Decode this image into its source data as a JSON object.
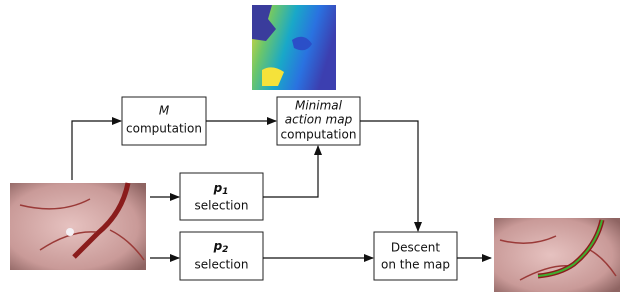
{
  "nodes": [
    {
      "symbol": "M",
      "label": "computation"
    },
    {
      "lines": [
        "Minimal",
        "action map"
      ],
      "label": "computation"
    },
    {
      "symbol": "p",
      "subscript": "1",
      "label": "selection"
    },
    {
      "symbol": "p",
      "subscript": "2",
      "label": "selection"
    },
    {
      "lines": [
        "Descent",
        "on the map"
      ]
    }
  ]
}
